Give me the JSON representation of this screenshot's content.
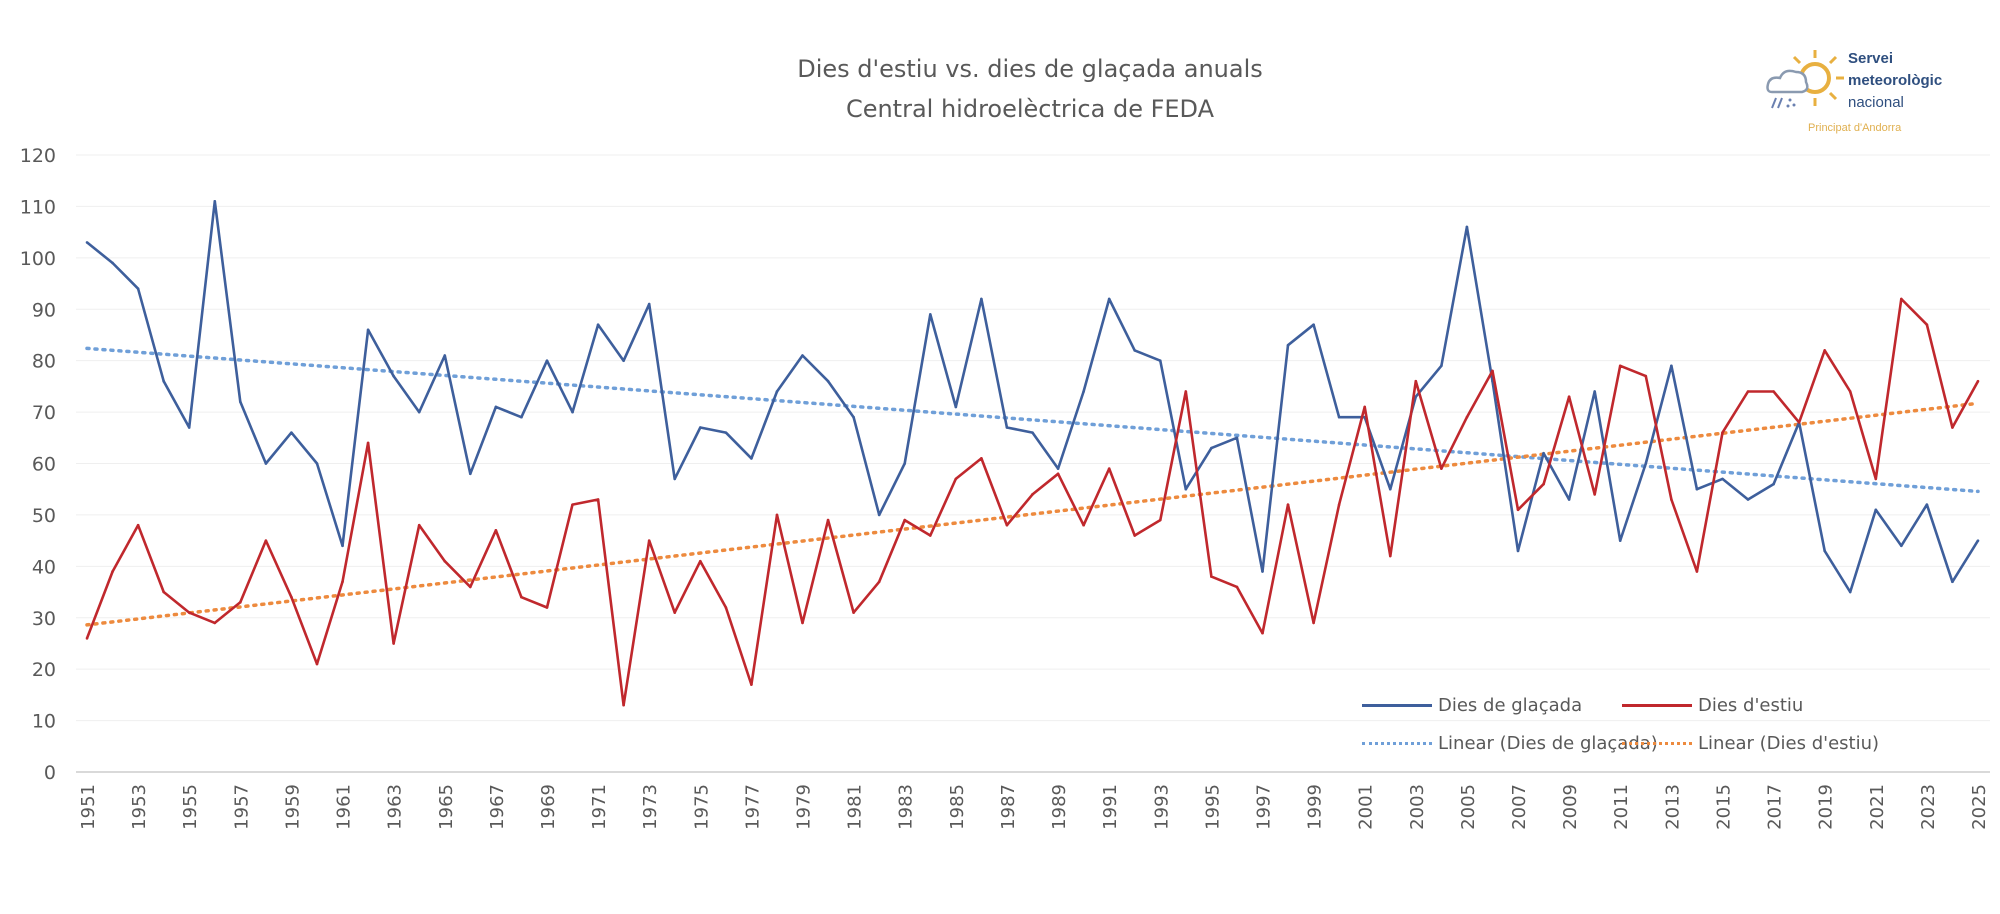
{
  "chart_data": {
    "type": "line",
    "title": "Dies d'estiu vs. dies de glaçada anuals",
    "subtitle": "Central hidroelèctrica de FEDA",
    "xlabel": "",
    "ylabel": "",
    "ylim": [
      0,
      120
    ],
    "yticks": [
      0,
      10,
      20,
      30,
      40,
      50,
      60,
      70,
      80,
      90,
      100,
      110,
      120
    ],
    "grid": true,
    "legend_position": "bottom-right",
    "x": [
      1951,
      1952,
      1953,
      1954,
      1955,
      1956,
      1957,
      1958,
      1959,
      1960,
      1961,
      1962,
      1963,
      1964,
      1965,
      1966,
      1967,
      1968,
      1969,
      1970,
      1971,
      1972,
      1973,
      1974,
      1975,
      1976,
      1977,
      1978,
      1979,
      1980,
      1981,
      1982,
      1983,
      1984,
      1985,
      1986,
      1987,
      1988,
      1989,
      1990,
      1991,
      1992,
      1993,
      1994,
      1995,
      1996,
      1997,
      1998,
      1999,
      2000,
      2001,
      2002,
      2003,
      2004,
      2005,
      2006,
      2007,
      2008,
      2009,
      2010,
      2011,
      2012,
      2013,
      2014,
      2015,
      2016,
      2017,
      2018,
      2019,
      2020,
      2021,
      2022,
      2023,
      2024,
      2025
    ],
    "series": [
      {
        "name": "Dies de glaçada",
        "color": "#3e5f9c",
        "style": "solid",
        "values": [
          103,
          99,
          94,
          76,
          67,
          111,
          72,
          60,
          66,
          60,
          44,
          86,
          77,
          70,
          81,
          58,
          71,
          69,
          80,
          70,
          87,
          80,
          91,
          57,
          67,
          66,
          61,
          74,
          81,
          76,
          69,
          50,
          60,
          89,
          71,
          92,
          67,
          66,
          59,
          74,
          92,
          82,
          80,
          55,
          63,
          65,
          39,
          83,
          87,
          69,
          69,
          55,
          73,
          79,
          106,
          76,
          43,
          62,
          53,
          74,
          45,
          60,
          79,
          55,
          57,
          53,
          56,
          68,
          43,
          35,
          51,
          44,
          52,
          37,
          45
        ]
      },
      {
        "name": "Dies d'estiu",
        "color": "#c0282d",
        "style": "solid",
        "values": [
          26,
          39,
          48,
          35,
          31,
          29,
          33,
          45,
          34,
          21,
          37,
          64,
          25,
          48,
          41,
          36,
          47,
          34,
          32,
          52,
          53,
          13,
          45,
          31,
          41,
          32,
          17,
          50,
          29,
          49,
          31,
          37,
          49,
          46,
          57,
          61,
          48,
          54,
          58,
          48,
          59,
          46,
          49,
          74,
          38,
          36,
          27,
          52,
          29,
          52,
          71,
          42,
          76,
          59,
          69,
          78,
          51,
          56,
          73,
          54,
          79,
          77,
          53,
          39,
          66,
          74,
          74,
          68,
          82,
          74,
          57,
          92,
          87,
          67,
          76
        ]
      },
      {
        "name": "Linear (Dies de glaçada)",
        "color": "#6f9fd8",
        "style": "dotted",
        "trend_of": 0
      },
      {
        "name": "Linear (Dies d'estiu)",
        "color": "#ed8a3e",
        "style": "dotted",
        "trend_of": 1
      }
    ]
  },
  "logo": {
    "line1": "Servei",
    "line2": "meteorològic",
    "line3": "nacional",
    "sub": "Principat d'Andorra"
  }
}
